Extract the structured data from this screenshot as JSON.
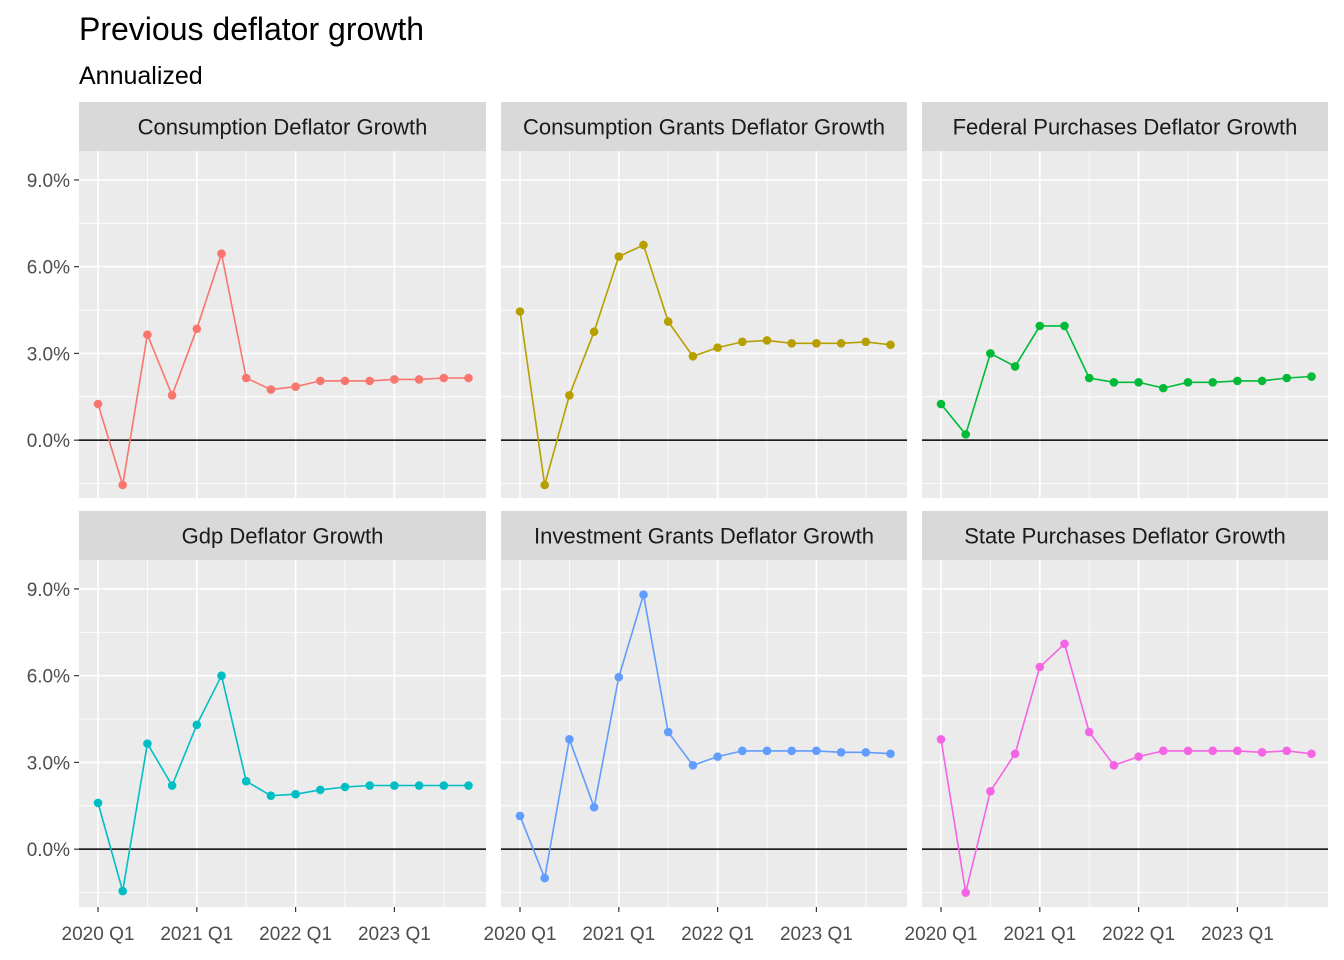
{
  "chart_data": {
    "type": "line",
    "title": "Previous deflator growth",
    "subtitle": "Annualized",
    "x_ticks": [
      "2020 Q1",
      "2021 Q1",
      "2022 Q1",
      "2023 Q1"
    ],
    "y_ticks": [
      "0.0%",
      "3.0%",
      "6.0%",
      "9.0%"
    ],
    "ylim": [
      -2.0,
      10.0
    ],
    "x": [
      "2020 Q1",
      "2020 Q2",
      "2020 Q3",
      "2020 Q4",
      "2021 Q1",
      "2021 Q2",
      "2021 Q3",
      "2021 Q4",
      "2022 Q1",
      "2022 Q2",
      "2022 Q3",
      "2022 Q4",
      "2023 Q1",
      "2023 Q2",
      "2023 Q3",
      "2023 Q4"
    ],
    "reference_line": 0,
    "grid": true,
    "facets": [
      {
        "name": "Consumption Deflator Growth",
        "color": "#F8766D",
        "values": [
          1.25,
          -1.55,
          3.65,
          1.55,
          3.85,
          6.45,
          2.15,
          1.75,
          1.85,
          2.05,
          2.05,
          2.05,
          2.1,
          2.1,
          2.15,
          2.15
        ]
      },
      {
        "name": "Consumption Grants Deflator Growth",
        "color": "#B79F00",
        "values": [
          4.45,
          -1.55,
          1.55,
          3.75,
          6.35,
          6.75,
          4.1,
          2.9,
          3.2,
          3.4,
          3.45,
          3.35,
          3.35,
          3.35,
          3.4,
          3.3
        ]
      },
      {
        "name": "Federal Purchases Deflator Growth",
        "color": "#00BA38",
        "values": [
          1.25,
          0.2,
          3.0,
          2.55,
          3.95,
          3.95,
          2.15,
          2.0,
          2.0,
          1.8,
          2.0,
          2.0,
          2.05,
          2.05,
          2.15,
          2.2
        ]
      },
      {
        "name": "Gdp Deflator Growth",
        "color": "#00BFC4",
        "values": [
          1.6,
          -1.45,
          3.65,
          2.2,
          4.3,
          6.0,
          2.35,
          1.85,
          1.9,
          2.05,
          2.15,
          2.2,
          2.2,
          2.2,
          2.2,
          2.2
        ]
      },
      {
        "name": "Investment Grants Deflator Growth",
        "color": "#619CFF",
        "values": [
          1.15,
          -1.0,
          3.8,
          1.45,
          5.95,
          8.8,
          4.05,
          2.9,
          3.2,
          3.4,
          3.4,
          3.4,
          3.4,
          3.35,
          3.35,
          3.3
        ]
      },
      {
        "name": "State Purchases Deflator Growth",
        "color": "#F564E3",
        "values": [
          3.8,
          -1.5,
          2.0,
          3.3,
          6.3,
          7.1,
          4.05,
          2.9,
          3.2,
          3.4,
          3.4,
          3.4,
          3.4,
          3.35,
          3.4,
          3.3
        ]
      }
    ]
  }
}
